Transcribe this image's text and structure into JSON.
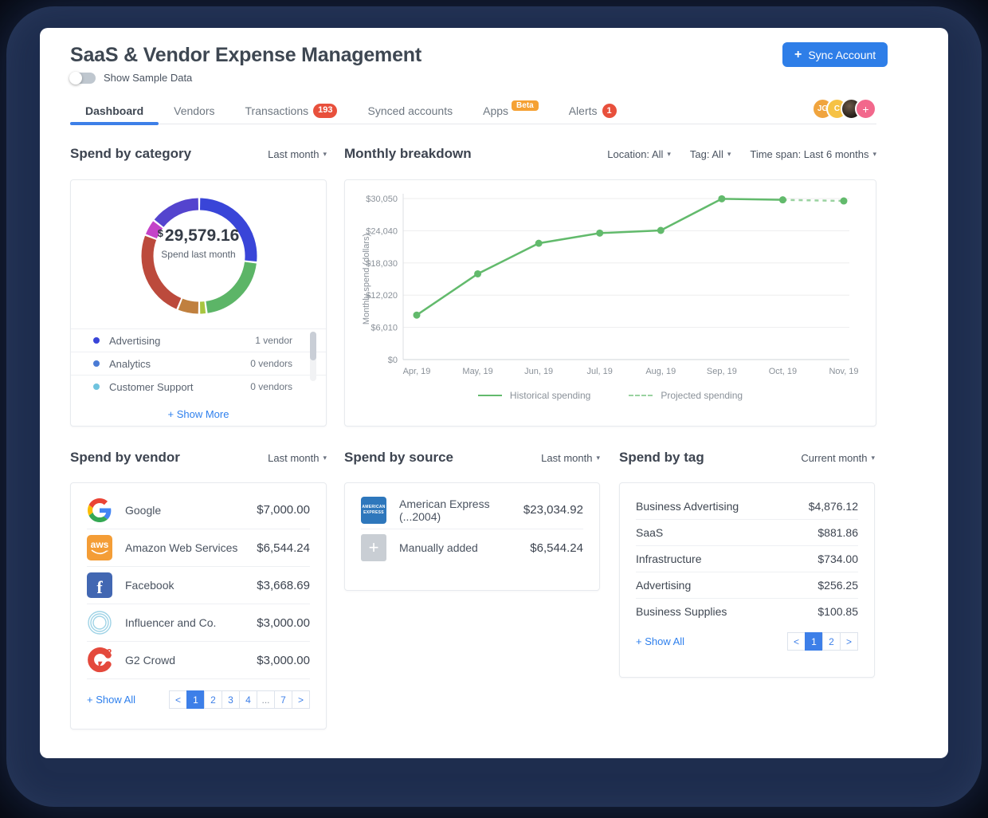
{
  "header": {
    "title": "SaaS & Vendor Expense Management",
    "toggle_label": "Show Sample Data",
    "toggle_state": "off",
    "sync": {
      "icon": "+",
      "label": "Sync Account"
    },
    "accent_color": "#2e7ee8"
  },
  "tabs": [
    {
      "label": "Dashboard",
      "active": true
    },
    {
      "label": "Vendors"
    },
    {
      "label": "Transactions",
      "badge": "193"
    },
    {
      "label": "Synced accounts"
    },
    {
      "label": "Apps",
      "beta": "Beta"
    },
    {
      "label": "Alerts",
      "badge_circle": "1"
    }
  ],
  "avatars": [
    {
      "type": "initials",
      "text": "JG",
      "bg": "#f0a43e"
    },
    {
      "type": "initials",
      "text": "C",
      "bg": "#f6c244"
    },
    {
      "type": "photo"
    },
    {
      "type": "add",
      "text": "+",
      "bg": "#f2688c"
    }
  ],
  "spend_by_category": {
    "title": "Spend by category",
    "period": "Last month",
    "center": {
      "currency": "$",
      "amount": "29,579.16",
      "label": "Spend last month"
    },
    "chart_data": {
      "type": "donut",
      "segments": [
        {
          "color": "#3945d8",
          "value": 26
        },
        {
          "color": "#5cb567",
          "value": 20.5
        },
        {
          "color": "#a8c53f",
          "value": 2
        },
        {
          "color": "#c0803f",
          "value": 6
        },
        {
          "color": "#bc4a3c",
          "value": 24
        },
        {
          "color": "#c443c8",
          "value": 4.5
        },
        {
          "color": "#5444ce",
          "value": 14
        }
      ]
    },
    "legend": [
      {
        "color": "#3945d8",
        "label": "Advertising",
        "count": "1 vendor"
      },
      {
        "color": "#4a7bd5",
        "label": "Analytics",
        "count": "0 vendors"
      },
      {
        "color": "#6fc3de",
        "label": "Customer Support",
        "count": "0 vendors"
      }
    ],
    "show_more": "+ Show More"
  },
  "monthly_breakdown": {
    "title": "Monthly breakdown",
    "filters": [
      "Location: All",
      "Tag: All",
      "Time span: Last 6 months"
    ],
    "chart_data": {
      "type": "line",
      "x": [
        "Apr, 19",
        "May, 19",
        "Jun, 19",
        "Jul, 19",
        "Aug, 19",
        "Sep, 19",
        "Oct, 19",
        "Nov, 19"
      ],
      "series": [
        {
          "name": "Historical spending",
          "style": "solid",
          "color": "#62ba6c",
          "values": [
            8300,
            16000,
            21700,
            23600,
            24100,
            30000,
            29800,
            null
          ]
        },
        {
          "name": "Projected spending",
          "style": "dashed",
          "color": "#9ad2a0",
          "values": [
            null,
            null,
            null,
            null,
            null,
            null,
            29800,
            29600
          ]
        }
      ],
      "ylabel": "Monthly spend (dollars)",
      "yticks": [
        0,
        6010,
        12020,
        18030,
        24040,
        30050
      ],
      "ytick_labels": [
        "$0",
        "$6,010",
        "$12,020",
        "$18,030",
        "$24,040",
        "$30,050"
      ],
      "ylim": [
        0,
        30050
      ],
      "grid": true,
      "legend_position": "bottom"
    }
  },
  "spend_by_vendor": {
    "title": "Spend by vendor",
    "period": "Last month",
    "rows": [
      {
        "icon": "google",
        "name": "Google",
        "amount": "$7,000.00"
      },
      {
        "icon": "aws",
        "name": "Amazon Web Services",
        "amount": "$6,544.24"
      },
      {
        "icon": "facebook",
        "name": "Facebook",
        "amount": "$3,668.69"
      },
      {
        "icon": "influencer",
        "name": "Influencer and Co.",
        "amount": "$3,000.00"
      },
      {
        "icon": "g2",
        "name": "G2 Crowd",
        "amount": "$3,000.00"
      }
    ],
    "show_all": "+ Show All",
    "pagination": {
      "items": [
        "<",
        "1",
        "2",
        "3",
        "4",
        "...",
        "7",
        ">"
      ],
      "active": "1"
    }
  },
  "spend_by_source": {
    "title": "Spend by source",
    "period": "Last month",
    "rows": [
      {
        "icon": "amex",
        "name": "American Express (...2004)",
        "amount": "$23,034.92"
      },
      {
        "icon": "plus",
        "name": "Manually added",
        "amount": "$6,544.24"
      }
    ]
  },
  "spend_by_tag": {
    "title": "Spend by tag",
    "period": "Current month",
    "rows": [
      {
        "name": "Business Advertising",
        "amount": "$4,876.12"
      },
      {
        "name": "SaaS",
        "amount": "$881.86"
      },
      {
        "name": "Infrastructure",
        "amount": "$734.00"
      },
      {
        "name": "Advertising",
        "amount": "$256.25"
      },
      {
        "name": "Business Supplies",
        "amount": "$100.85"
      }
    ],
    "show_all": "+ Show All",
    "pagination": {
      "items": [
        "<",
        "1",
        "2",
        ">"
      ],
      "active": "1"
    }
  },
  "logos": {
    "aws": {
      "text": "aws",
      "bg": "#f49d36"
    },
    "facebook": {
      "text": "f",
      "bg": "#4267b2"
    },
    "amex": {
      "lines": [
        "AMERICAN",
        "EXPRESS"
      ],
      "bg": "#2e77bc"
    },
    "plus": {
      "text": "+",
      "bg": "#c9ced4"
    },
    "g2": {
      "text": "G",
      "sup": "2",
      "color": "#e4493c"
    },
    "influencer": {
      "color": "#9fd3e6"
    }
  }
}
